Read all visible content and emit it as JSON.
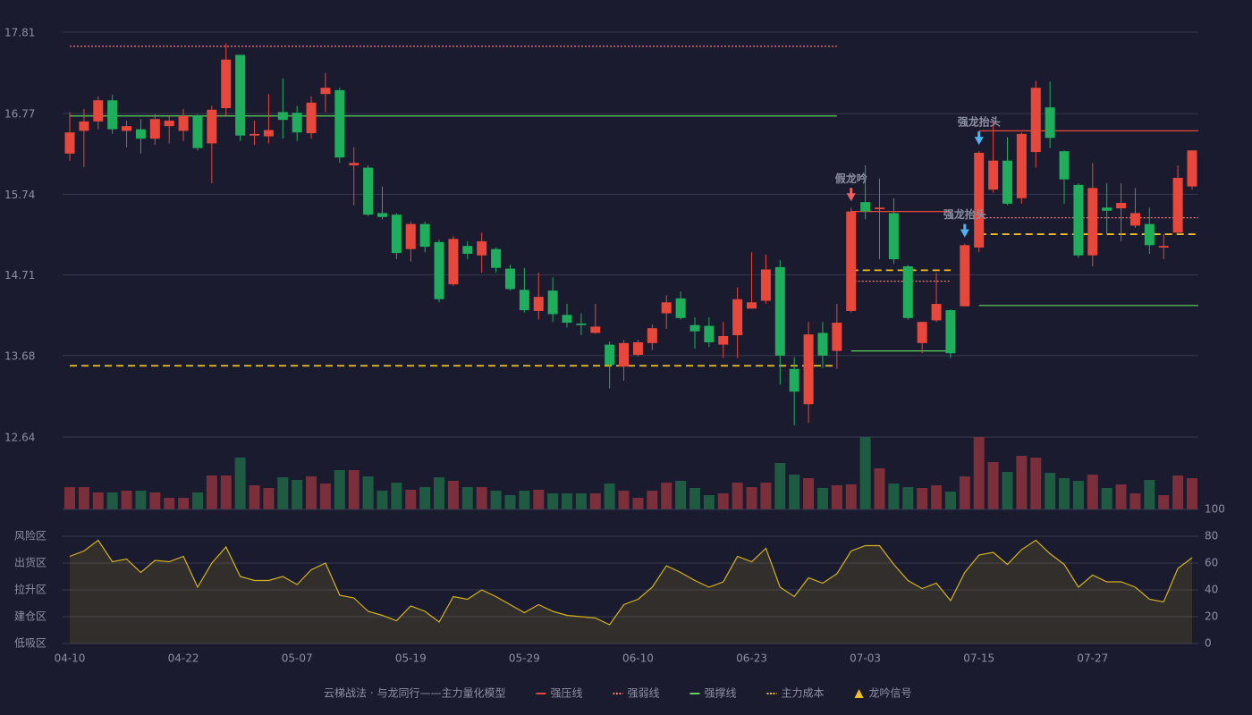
{
  "chart_data": {
    "type": "candlestick",
    "categories": [
      "04-10",
      null,
      null,
      null,
      null,
      null,
      null,
      null,
      "04-22",
      null,
      null,
      null,
      null,
      null,
      null,
      null,
      "05-07",
      null,
      null,
      null,
      null,
      null,
      null,
      null,
      "05-19",
      null,
      null,
      null,
      null,
      null,
      null,
      null,
      "05-29",
      null,
      null,
      null,
      null,
      null,
      null,
      null,
      "06-10",
      null,
      null,
      null,
      null,
      null,
      null,
      null,
      "06-23",
      null,
      null,
      null,
      null,
      null,
      null,
      null,
      "07-03",
      null,
      null,
      null,
      null,
      null,
      null,
      null,
      "07-15",
      null,
      null,
      null,
      null,
      null,
      null,
      null,
      "07-27",
      null,
      null,
      null,
      null,
      null,
      null,
      null
    ],
    "open": [
      16.26,
      16.55,
      16.67,
      16.94,
      16.55,
      16.57,
      16.45,
      16.61,
      16.55,
      16.74,
      16.39,
      16.84,
      17.52,
      16.49,
      16.48,
      16.79,
      16.78,
      16.52,
      17.02,
      17.07,
      16.11,
      16.08,
      15.5,
      15.48,
      15.04,
      15.36,
      15.13,
      14.59,
      15.08,
      14.96,
      15.04,
      14.79,
      14.52,
      14.25,
      14.51,
      14.2,
      14.09,
      13.97,
      13.82,
      13.54,
      13.69,
      13.84,
      14.22,
      14.41,
      14.07,
      14.06,
      13.82,
      13.94,
      14.28,
      14.38,
      14.81,
      13.51,
      13.06,
      13.97,
      13.74,
      14.25,
      15.64,
      15.55,
      15.5,
      14.82,
      13.84,
      14.13,
      14.26,
      14.31,
      15.06,
      15.8,
      16.17,
      15.69,
      16.28,
      16.85,
      16.29,
      15.86,
      14.96,
      15.57,
      15.56,
      15.34,
      15.36,
      15.06,
      15.25,
      15.84
    ],
    "close": [
      16.53,
      16.67,
      16.94,
      16.57,
      16.61,
      16.45,
      16.7,
      16.68,
      16.74,
      16.33,
      16.82,
      17.46,
      16.49,
      16.51,
      16.56,
      16.69,
      16.53,
      16.91,
      17.1,
      16.21,
      16.14,
      15.48,
      15.45,
      14.99,
      15.36,
      15.07,
      14.4,
      15.17,
      14.98,
      15.14,
      14.8,
      14.53,
      14.26,
      14.43,
      14.21,
      14.1,
      14.07,
      14.05,
      13.56,
      13.84,
      13.85,
      14.03,
      14.36,
      14.16,
      13.99,
      13.85,
      13.93,
      14.4,
      14.36,
      14.78,
      13.68,
      13.22,
      13.95,
      13.68,
      14.1,
      15.52,
      15.52,
      15.57,
      14.91,
      14.16,
      14.11,
      14.34,
      13.71,
      15.09,
      16.27,
      16.17,
      15.62,
      16.51,
      17.1,
      16.46,
      15.93,
      14.96,
      15.82,
      15.53,
      15.63,
      15.5,
      15.09,
      15.08,
      15.95,
      16.3
    ],
    "high": [
      16.79,
      16.83,
      16.99,
      17.01,
      16.68,
      16.7,
      16.76,
      16.74,
      16.83,
      16.76,
      16.87,
      17.67,
      17.52,
      16.68,
      17.02,
      17.22,
      16.87,
      16.99,
      17.29,
      17.1,
      16.34,
      16.11,
      15.84,
      15.5,
      15.39,
      15.39,
      15.16,
      15.21,
      15.14,
      15.25,
      15.06,
      14.84,
      14.8,
      14.74,
      14.68,
      14.34,
      14.22,
      14.34,
      13.86,
      13.88,
      13.88,
      14.08,
      14.45,
      14.5,
      14.17,
      14.17,
      14.11,
      14.55,
      15.0,
      14.97,
      14.9,
      13.66,
      14.11,
      14.11,
      14.34,
      15.57,
      16.11,
      15.94,
      15.69,
      14.84,
      14.11,
      14.74,
      14.27,
      15.11,
      16.29,
      16.66,
      16.47,
      16.53,
      17.19,
      17.18,
      16.3,
      15.88,
      16.14,
      15.88,
      15.88,
      15.82,
      15.57,
      15.23,
      16.11,
      16.3
    ],
    "low": [
      16.17,
      16.09,
      16.57,
      16.51,
      16.34,
      16.26,
      16.37,
      16.39,
      16.42,
      16.3,
      15.88,
      16.74,
      16.42,
      16.37,
      16.39,
      16.45,
      16.42,
      16.45,
      16.79,
      16.14,
      15.6,
      15.46,
      15.42,
      14.91,
      14.88,
      15.0,
      14.36,
      14.57,
      14.91,
      14.74,
      14.74,
      14.51,
      14.23,
      14.14,
      14.11,
      14.04,
      13.94,
      13.96,
      13.26,
      13.36,
      13.67,
      13.75,
      14.02,
      14.14,
      13.77,
      13.79,
      13.65,
      13.65,
      14.28,
      14.34,
      13.31,
      12.79,
      12.82,
      13.52,
      13.51,
      14.23,
      15.42,
      14.91,
      14.85,
      14.14,
      13.71,
      14.11,
      13.65,
      14.31,
      15.0,
      15.76,
      15.6,
      15.62,
      16.08,
      16.33,
      15.62,
      14.93,
      14.82,
      15.23,
      15.14,
      15.31,
      14.98,
      14.91,
      15.23,
      15.8
    ],
    "up_color": "#e8473c",
    "down_color": "#1fae5c",
    "ylim": [
      12.64,
      17.81
    ],
    "yticks": [
      12.64,
      13.68,
      14.71,
      15.74,
      16.77,
      17.81
    ],
    "lines": [
      {
        "name": "强压线",
        "color": "#e8473c",
        "style": "solid",
        "segments": [
          {
            "value": 15.52,
            "start": 55,
            "end": 62
          },
          {
            "value": 16.55,
            "start": 64,
            "end": 79
          }
        ]
      },
      {
        "name": "强弱线",
        "color": "#f07878",
        "style": "dotted",
        "segments": [
          {
            "value": 17.63,
            "start": 0,
            "end": 54
          },
          {
            "value": 14.63,
            "start": 55,
            "end": 62
          },
          {
            "value": 15.44,
            "start": 64,
            "end": 79
          }
        ]
      },
      {
        "name": "强撑线",
        "color": "#5fd35f",
        "style": "solid",
        "segments": [
          {
            "value": 16.74,
            "start": 0,
            "end": 54
          },
          {
            "value": 13.74,
            "start": 55,
            "end": 62
          },
          {
            "value": 14.32,
            "start": 64,
            "end": 79
          }
        ]
      },
      {
        "name": "主力成本",
        "color": "#f0c020",
        "style": "dashed",
        "segments": [
          {
            "value": 13.55,
            "start": 0,
            "end": 54
          },
          {
            "value": 14.77,
            "start": 55,
            "end": 62
          },
          {
            "value": 15.23,
            "start": 64,
            "end": 79
          }
        ]
      }
    ],
    "signals": [
      {
        "label": "假龙吟",
        "index": 55,
        "color": "#f06060"
      },
      {
        "label": "强龙抬头",
        "index": 63,
        "color": "#4fb3f0"
      },
      {
        "label": "强龙抬头",
        "index": 64,
        "color": "#4fb3f0"
      }
    ],
    "volume": {
      "values": [
        25,
        25,
        19,
        19,
        21,
        21,
        19,
        13,
        13,
        19,
        38,
        38,
        58,
        27,
        24,
        36,
        33,
        37,
        29,
        44,
        44,
        37,
        21,
        30,
        22,
        25,
        36,
        32,
        25,
        25,
        21,
        16,
        21,
        22,
        18,
        18,
        18,
        18,
        29,
        21,
        13,
        21,
        30,
        32,
        24,
        16,
        18,
        30,
        25,
        30,
        52,
        39,
        35,
        24,
        27,
        28,
        81,
        46,
        29,
        25,
        24,
        27,
        20,
        37,
        81,
        53,
        42,
        60,
        58,
        41,
        35,
        32,
        39,
        24,
        28,
        18,
        33,
        16,
        38,
        35
      ],
      "ylim": [
        0,
        81
      ]
    },
    "indicator": {
      "values": [
        65,
        69,
        77,
        61,
        63,
        53,
        62,
        61,
        65,
        42,
        60,
        72,
        50,
        47,
        47,
        50,
        44,
        55,
        60,
        36,
        34,
        24,
        21,
        17,
        28,
        24,
        16,
        35,
        33,
        40,
        35,
        29,
        23,
        29,
        24,
        21,
        20,
        19,
        14,
        29,
        33,
        42,
        58,
        53,
        47,
        42,
        46,
        65,
        61,
        71,
        42,
        35,
        49,
        45,
        52,
        69,
        73,
        73,
        59,
        47,
        41,
        45,
        32,
        53,
        66,
        68,
        59,
        70,
        77,
        67,
        59,
        42,
        51,
        46,
        46,
        42,
        33,
        31,
        56,
        64
      ],
      "color": "#d4b21f",
      "ylim": [
        0,
        100
      ],
      "yticks": [
        0,
        20,
        40,
        60,
        80,
        100
      ],
      "ytick_colors": [
        "#f05050",
        "#f05a7a",
        "#4a90e2",
        "#e040e0",
        "#e8a33d",
        "#4ce04c"
      ],
      "zones": [
        {
          "label": "风险区",
          "value": 80,
          "color": "#e8a33d"
        },
        {
          "label": "出货区",
          "value": 60,
          "color": "#e040e0"
        },
        {
          "label": "拉升区",
          "value": 40,
          "color": "#4a90e2"
        },
        {
          "label": "建仓区",
          "value": 20,
          "color": "#f05a5a"
        },
        {
          "label": "低吸区",
          "value": 0,
          "color": "#f05050"
        }
      ]
    },
    "legend_title": "云梯战法 · 与龙同行——主力量化模型",
    "signal_legend": {
      "label": "龙吟信号",
      "color": "#f0c020"
    }
  }
}
